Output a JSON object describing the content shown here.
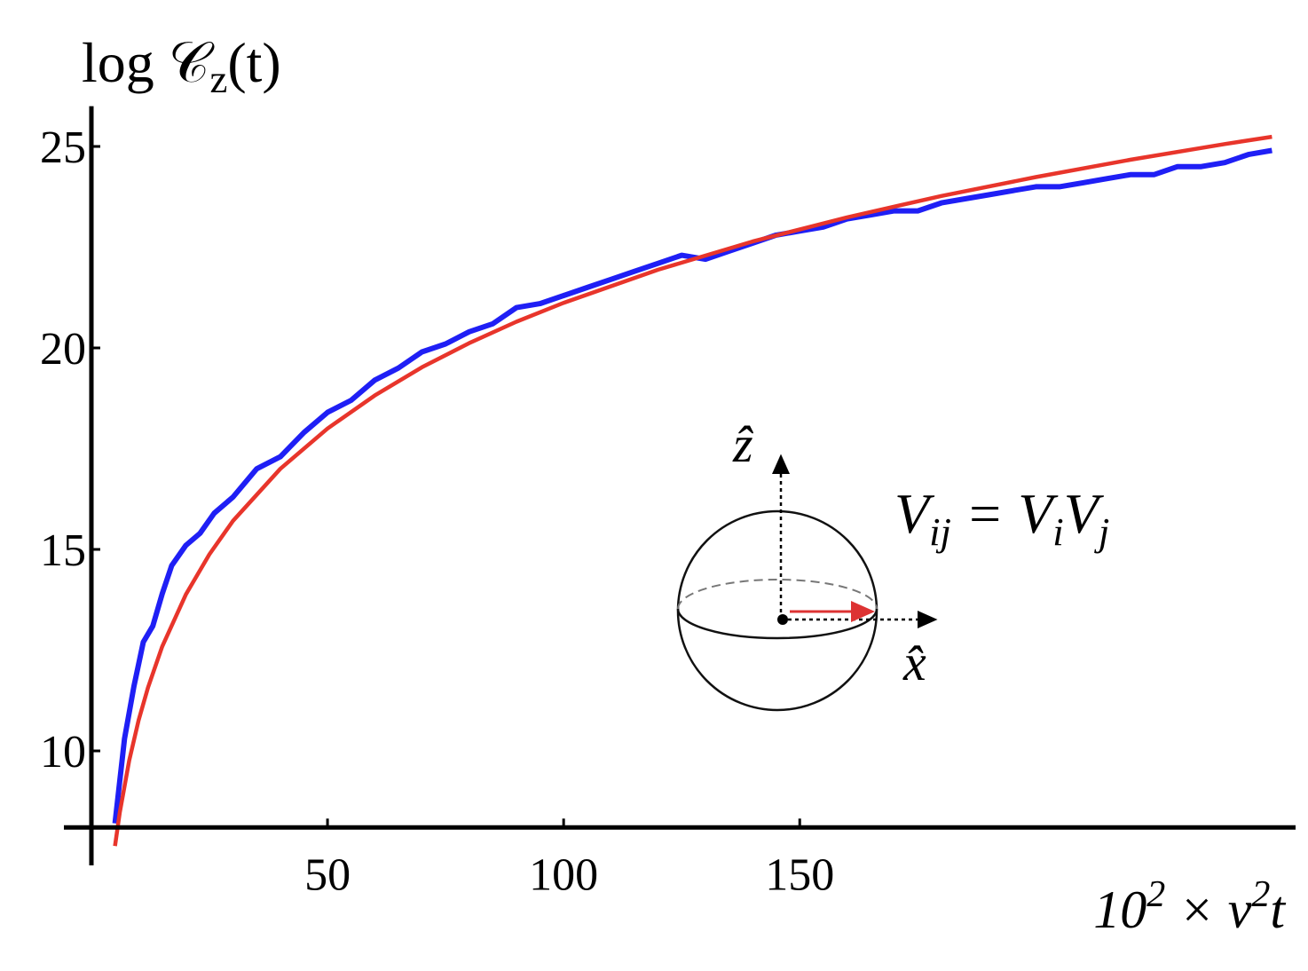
{
  "chart_data": {
    "type": "line",
    "ylabel": [
      "log ",
      "𝒞",
      "z",
      "(t)"
    ],
    "xlabel": [
      "10",
      "2",
      " × v",
      "2",
      "t"
    ],
    "xlim": [
      0,
      255
    ],
    "ylim": [
      7.3,
      26
    ],
    "axes_origin": [
      0,
      8.1
    ],
    "xticks": [
      50,
      100,
      150
    ],
    "yticks": [
      10,
      15,
      20,
      25
    ],
    "series": [
      {
        "color": "#1f1ff5",
        "x": [
          5,
          7,
          9,
          11,
          13,
          15,
          17,
          20,
          23,
          26,
          30,
          35,
          40,
          45,
          50,
          55,
          60,
          65,
          70,
          75,
          80,
          85,
          90,
          95,
          100,
          105,
          110,
          115,
          120,
          125,
          130,
          135,
          140,
          145,
          150,
          155,
          160,
          165,
          170,
          175,
          180,
          185,
          190,
          195,
          200,
          205,
          210,
          215,
          220,
          225,
          230,
          235,
          240,
          245,
          250
        ],
        "values": [
          8.2,
          10.3,
          11.6,
          12.7,
          13.1,
          13.9,
          14.6,
          15.1,
          15.4,
          15.9,
          16.3,
          17.0,
          17.3,
          17.9,
          18.4,
          18.7,
          19.2,
          19.5,
          19.9,
          20.1,
          20.4,
          20.6,
          21.0,
          21.1,
          21.3,
          21.5,
          21.7,
          21.9,
          22.1,
          22.3,
          22.2,
          22.4,
          22.6,
          22.8,
          22.9,
          23.0,
          23.2,
          23.3,
          23.4,
          23.4,
          23.6,
          23.7,
          23.8,
          23.9,
          24.0,
          24.0,
          24.1,
          24.2,
          24.3,
          24.3,
          24.5,
          24.5,
          24.6,
          24.8,
          24.9
        ]
      },
      {
        "color": "#e8352b",
        "x": [
          5,
          6,
          8,
          10,
          12,
          15,
          20,
          25,
          30,
          40,
          50,
          60,
          70,
          80,
          90,
          100,
          120,
          140,
          160,
          180,
          200,
          220,
          240,
          250
        ],
        "values": [
          7.64,
          8.46,
          9.76,
          10.76,
          11.58,
          12.59,
          13.88,
          14.88,
          15.71,
          17.0,
          18.0,
          18.82,
          19.52,
          20.12,
          20.65,
          21.12,
          21.94,
          22.64,
          23.24,
          23.77,
          24.24,
          24.67,
          25.06,
          25.24
        ]
      }
    ],
    "inset": {
      "z_label": "ẑ",
      "x_label": "x̂",
      "equation": [
        "V",
        "ij",
        " = ",
        "V",
        "i",
        "V",
        "j"
      ]
    }
  }
}
